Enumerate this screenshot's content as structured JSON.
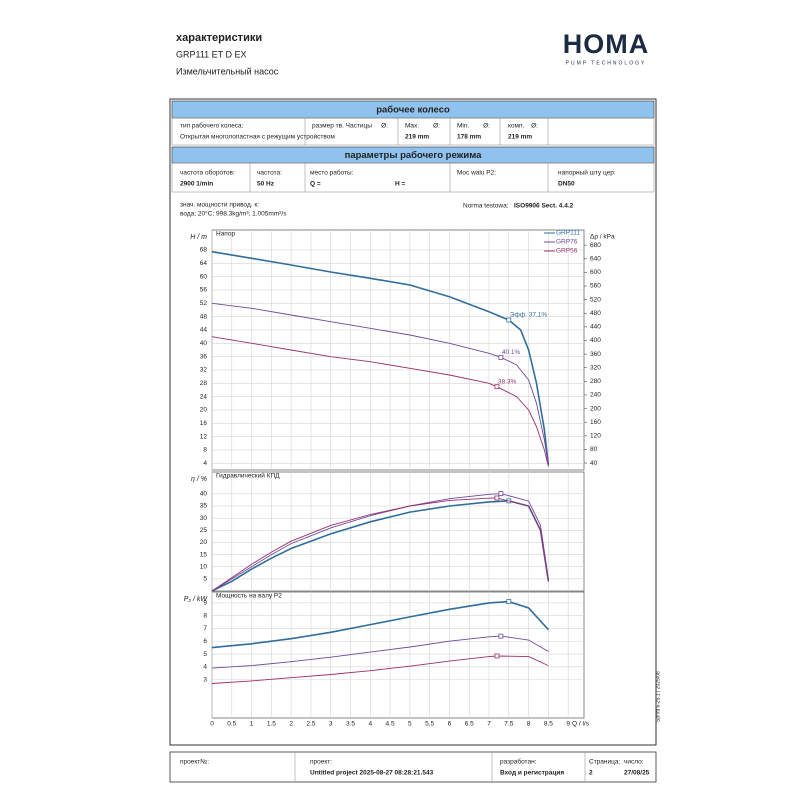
{
  "header": {
    "title": "характеристики",
    "model": "GRP111 ET D EX",
    "subtitle": "Измельчительный насос",
    "logo": "HOMA",
    "logo_sub": "PUMP TECHNOLOGY"
  },
  "impeller": {
    "heading": "рабочее колесо",
    "fields": [
      {
        "label": "тип рабочего колеса:",
        "value": "Открытая многолопастная с режущим устройством"
      },
      {
        "label": "размер тв. Частицы",
        "sym": "Ø:"
      },
      {
        "label": "Max.",
        "sym": "Ø:",
        "value": "219 mm"
      },
      {
        "label": "Min.",
        "sym": "Ø:",
        "value": "178 mm"
      },
      {
        "label": "комп.",
        "sym": "Ø:",
        "value": "219 mm"
      }
    ]
  },
  "operating": {
    "heading": "параметры рабочего режима",
    "fields": [
      {
        "label": "частота оборотов:",
        "value": "2900 1/min"
      },
      {
        "label": "частота:",
        "value": "50 Hz"
      },
      {
        "label": "место работы:",
        "value": "Q =",
        "value2": "H ="
      },
      {
        "label": "Moc walu P2:"
      },
      {
        "label": "напорный шту цер:",
        "value": "DN50"
      }
    ]
  },
  "fluid": {
    "label": "знач. мощности привод. к:",
    "value": "вода; 20°C; 998.3kg/m³; 1.005mm²/s"
  },
  "norm": {
    "label": "Norma testowa:",
    "value": "ISO9906 Sect. 4.4.2"
  },
  "chart_data": [
    {
      "type": "line",
      "title": "Напор",
      "ylabel": "H / m",
      "y2label": "Δp / kPa",
      "grid": true,
      "legend": "upper right",
      "xlim": [
        0,
        9.4
      ],
      "xticks": [
        0,
        0.5,
        1,
        1.5,
        2,
        2.5,
        3,
        3.5,
        4,
        4.5,
        5,
        5.5,
        6,
        6.5,
        7,
        7.5,
        8,
        8.5,
        9
      ],
      "ylim": [
        2,
        74
      ],
      "yticks": [
        4,
        8,
        12,
        16,
        20,
        24,
        28,
        32,
        36,
        40,
        44,
        48,
        52,
        56,
        60,
        64,
        68
      ],
      "y2lim": [
        19.6,
        724.5
      ],
      "y2ticks": [
        40,
        80,
        120,
        160,
        200,
        240,
        280,
        320,
        360,
        400,
        440,
        480,
        520,
        560,
        600,
        640,
        680
      ],
      "series": [
        {
          "name": "GRP111",
          "color": "#2f6e9c",
          "x": [
            0,
            1,
            2,
            3,
            4,
            5,
            6,
            7,
            7.5,
            7.8,
            8,
            8.2,
            8.4,
            8.5
          ],
          "values": [
            67.5,
            65.5,
            63.5,
            61.4,
            59.5,
            57.5,
            54,
            49.5,
            47,
            44,
            38,
            28,
            14,
            3.5
          ],
          "point": {
            "label": "Эфф. 37,1%",
            "x": 7.5,
            "y": 47
          }
        },
        {
          "name": "GRP76",
          "color": "#6f4a9e",
          "x": [
            0,
            1,
            2,
            3,
            4,
            5,
            6,
            7,
            7.3,
            7.7,
            8,
            8.2,
            8.4,
            8.5
          ],
          "values": [
            52,
            50.5,
            48.5,
            46.5,
            44.5,
            42.5,
            40,
            37,
            35.8,
            33.5,
            29,
            22,
            11,
            3.5
          ],
          "point": {
            "label": "40.1%",
            "x": 7.3,
            "y": 35.8
          }
        },
        {
          "name": "GRP56",
          "color": "#9c2f6e",
          "x": [
            0,
            1,
            2,
            3,
            4,
            5,
            6,
            7,
            7.2,
            7.7,
            8,
            8.2,
            8.4,
            8.5
          ],
          "values": [
            42,
            40,
            38,
            36,
            34.5,
            32.5,
            30.5,
            28,
            27,
            24,
            20,
            15,
            8,
            3
          ],
          "point": {
            "label": "38.3%",
            "x": 7.2,
            "y": 27
          }
        }
      ]
    },
    {
      "type": "line",
      "title": "Гидравлический КПД",
      "ylabel": "η / %",
      "grid": true,
      "xlim": [
        0,
        9.4
      ],
      "xticks": [
        0,
        0.5,
        1,
        1.5,
        2,
        2.5,
        3,
        3.5,
        4,
        4.5,
        5,
        5.5,
        6,
        6.5,
        7,
        7.5,
        8,
        8.5,
        9
      ],
      "ylim": [
        0,
        49
      ],
      "yticks": [
        5,
        10,
        15,
        20,
        25,
        30,
        35,
        40
      ],
      "series": [
        {
          "color": "#2f6e9c",
          "x": [
            0,
            0.5,
            1,
            1.5,
            2,
            3,
            4,
            5,
            6,
            7,
            7.5,
            8,
            8.3,
            8.5
          ],
          "values": [
            0,
            4,
            9,
            13.5,
            17.5,
            23.5,
            28.5,
            32.5,
            35,
            36.7,
            37.1,
            35,
            25,
            4
          ],
          "point": {
            "x": 7.5,
            "y": 37.1
          }
        },
        {
          "color": "#6f4a9e",
          "x": [
            0,
            0.5,
            1,
            1.5,
            2,
            3,
            4,
            5,
            6,
            7,
            7.3,
            8,
            8.3,
            8.5
          ],
          "values": [
            0,
            5,
            10,
            15,
            19.5,
            26,
            31,
            35,
            38,
            39.8,
            40.1,
            37,
            27,
            5
          ],
          "point": {
            "x": 7.3,
            "y": 40.1
          }
        },
        {
          "color": "#9c2f6e",
          "x": [
            0,
            0.5,
            1,
            1.5,
            2,
            3,
            4,
            5,
            6,
            7,
            7.2,
            8,
            8.3,
            8.5
          ],
          "values": [
            0,
            5.5,
            11,
            16,
            20.5,
            27,
            31.5,
            35,
            37.3,
            38.2,
            38.3,
            35,
            25,
            4
          ],
          "point": {
            "x": 7.2,
            "y": 38.3
          }
        }
      ]
    },
    {
      "type": "line",
      "title": "Мощность на валу P2",
      "ylabel": "P₂ / kW",
      "xlabel": "Q / l/s",
      "grid": true,
      "xlim": [
        0,
        9.4
      ],
      "xticks": [
        0,
        0.5,
        1,
        1.5,
        2,
        2.5,
        3,
        3.5,
        4,
        4.5,
        5,
        5.5,
        6,
        6.5,
        7,
        7.5,
        8,
        8.5,
        9
      ],
      "ylim": [
        0,
        9.85
      ],
      "yticks": [
        3,
        4,
        5,
        6,
        7,
        8,
        9
      ],
      "series": [
        {
          "color": "#2f6e9c",
          "x": [
            0,
            1,
            2,
            3,
            4,
            5,
            6,
            7,
            7.5,
            8,
            8.5
          ],
          "values": [
            5.5,
            5.8,
            6.2,
            6.7,
            7.3,
            7.9,
            8.5,
            9.0,
            9.1,
            8.6,
            6.9
          ],
          "point": {
            "x": 7.5,
            "y": 9.1
          }
        },
        {
          "color": "#6f4a9e",
          "x": [
            0,
            1,
            2,
            3,
            4,
            5,
            6,
            7,
            7.3,
            8,
            8.5
          ],
          "values": [
            3.9,
            4.1,
            4.4,
            4.75,
            5.15,
            5.55,
            6.0,
            6.35,
            6.4,
            6.1,
            5.2
          ],
          "point": {
            "x": 7.3,
            "y": 6.4
          }
        },
        {
          "color": "#9c2f6e",
          "x": [
            0,
            1,
            2,
            3,
            4,
            5,
            6,
            7,
            7.2,
            8,
            8.5
          ],
          "values": [
            2.7,
            2.9,
            3.15,
            3.4,
            3.7,
            4.05,
            4.45,
            4.8,
            4.85,
            4.8,
            4.1
          ],
          "point": {
            "x": 7.2,
            "y": 4.85
          }
        }
      ]
    }
  ],
  "side_note": "Sprint 6-25.1 | 2025/08",
  "footer": {
    "cells": [
      {
        "label": "проект№:"
      },
      {
        "label": "проект:",
        "value": "Untitled project 2025-08-27 08:28:21.543"
      },
      {
        "label": "разработан:",
        "value": "Вход и регистрация"
      },
      {
        "label": "Страница:",
        "label2": "число:",
        "value": "2",
        "value2": "27/08/25"
      }
    ]
  }
}
